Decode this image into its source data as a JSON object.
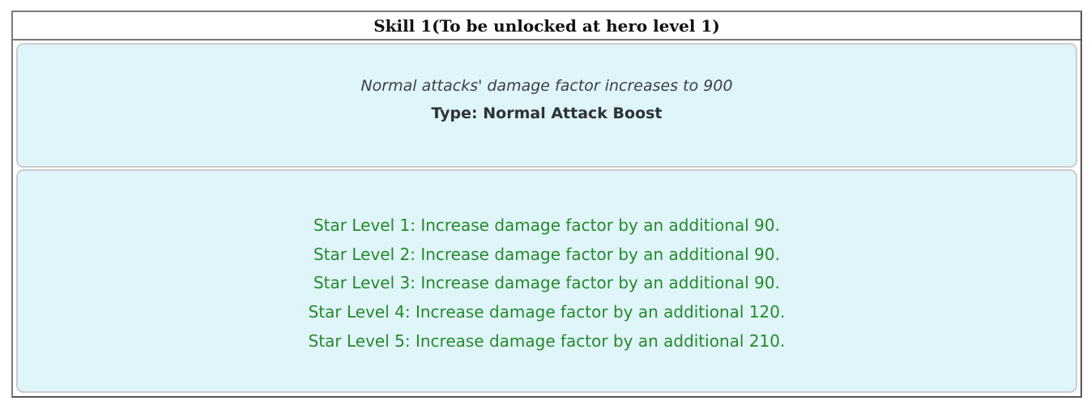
{
  "skill": {
    "title": "Skill 1(To be unlocked at hero level 1)",
    "description": "Normal attacks' damage factor increases to 900",
    "type": "Type: Normal Attack Boost",
    "star_levels": [
      "Star Level 1: Increase damage factor by an additional 90.",
      "Star Level 2: Increase damage factor by an additional 90.",
      "Star Level 3: Increase damage factor by an additional 90.",
      "Star Level 4: Increase damage factor by an additional 120.",
      "Star Level 5: Increase damage factor by an additional 210."
    ]
  },
  "colors": {
    "box_background": "#dff5f9",
    "star_text": "#25892b"
  }
}
